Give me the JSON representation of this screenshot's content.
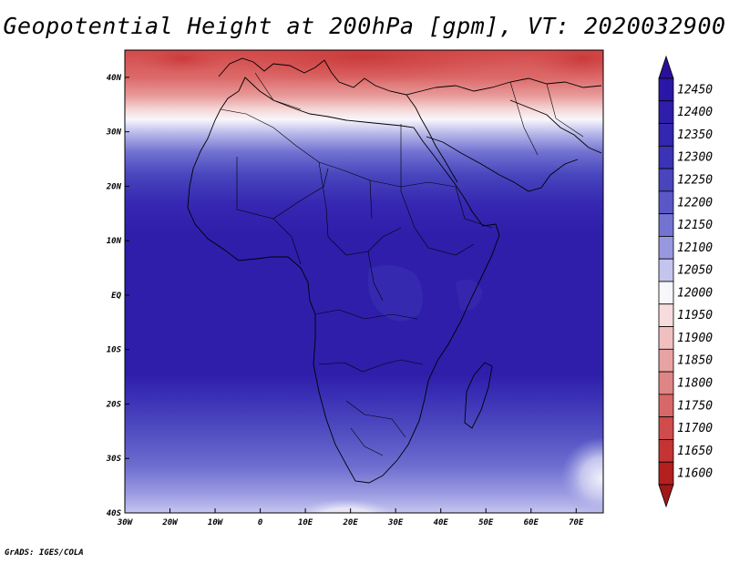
{
  "title": "Geopotential Height at 200hPa [gpm], VT: 2020032900",
  "credit": "GrADS: IGES/COLA",
  "map": {
    "lon_range": [
      -30,
      76
    ],
    "lat_range": [
      -40,
      45
    ],
    "x_ticks": [
      {
        "value": -30,
        "label": "30W"
      },
      {
        "value": -20,
        "label": "20W"
      },
      {
        "value": -10,
        "label": "10W"
      },
      {
        "value": 0,
        "label": "0"
      },
      {
        "value": 10,
        "label": "10E"
      },
      {
        "value": 20,
        "label": "20E"
      },
      {
        "value": 30,
        "label": "30E"
      },
      {
        "value": 40,
        "label": "40E"
      },
      {
        "value": 50,
        "label": "50E"
      },
      {
        "value": 60,
        "label": "60E"
      },
      {
        "value": 70,
        "label": "70E"
      }
    ],
    "y_ticks": [
      {
        "value": 40,
        "label": "40N"
      },
      {
        "value": 30,
        "label": "30N"
      },
      {
        "value": 20,
        "label": "20N"
      },
      {
        "value": 10,
        "label": "10N"
      },
      {
        "value": 0,
        "label": "EQ"
      },
      {
        "value": -10,
        "label": "10S"
      },
      {
        "value": -20,
        "label": "20S"
      },
      {
        "value": -30,
        "label": "30S"
      },
      {
        "value": -40,
        "label": "40S"
      }
    ]
  },
  "colorbar": {
    "levels": [
      12450,
      12400,
      12350,
      12300,
      12250,
      12200,
      12150,
      12100,
      12050,
      12000,
      11950,
      11900,
      11850,
      11800,
      11750,
      11700,
      11650,
      11600
    ],
    "labels": [
      "12450",
      "12400",
      "12350",
      "12300",
      "12250",
      "12200",
      "12150",
      "12100",
      "12050",
      "12000",
      "11950",
      "11900",
      "11850",
      "11800",
      "11750",
      "11700",
      "11650",
      "11600"
    ],
    "colors": [
      "#2a17a8",
      "#2e1eaa",
      "#3326b0",
      "#3b33b6",
      "#4845bd",
      "#5a58c6",
      "#7373d2",
      "#9898e0",
      "#c4c4ee",
      "#f6f6fb",
      "#f6dcdc",
      "#f0c0c0",
      "#e8a2a2",
      "#e08585",
      "#d86868",
      "#d04b4b",
      "#c43434",
      "#b41f1f"
    ],
    "top_arrow_color": "#2a1098",
    "bottom_arrow_color": "#a01818"
  }
}
